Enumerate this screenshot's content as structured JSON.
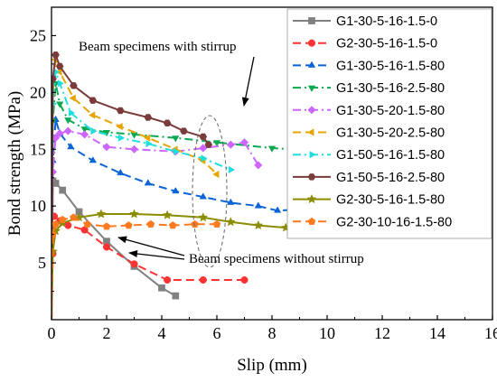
{
  "chart_data": {
    "type": "line",
    "xlabel": "Slip (mm)",
    "ylabel": "Bond strength (MPa)",
    "xlim": [
      0,
      16
    ],
    "ylim": [
      0,
      27.5
    ],
    "xticks": [
      0,
      2,
      4,
      6,
      8,
      10,
      12,
      14,
      16
    ],
    "yticks": [
      5,
      10,
      15,
      20,
      25
    ],
    "grid": false,
    "legend": "top-right",
    "annotations": [
      {
        "id": "with-stirrup",
        "text": "Beam specimens with stirrup"
      },
      {
        "id": "without-stirrup",
        "text": "Beam specimens without stirrup"
      }
    ],
    "series": [
      {
        "name": "G1-30-5-16-1.5-0",
        "color": "#808080",
        "marker": "square",
        "dash": "solid",
        "x": [
          0,
          0.05,
          0.15,
          0.4,
          1.0,
          2.0,
          3.0,
          4.0,
          4.5
        ],
        "y": [
          0,
          12.2,
          12.0,
          11.4,
          9.5,
          6.9,
          4.7,
          2.8,
          2.1
        ]
      },
      {
        "name": "G2-30-5-16-1.5-0",
        "color": "#ff3333",
        "marker": "circle",
        "dash": "dash",
        "x": [
          0,
          0.05,
          0.1,
          0.3,
          0.6,
          1.2,
          2.0,
          3.0,
          4.2,
          5.5,
          7.0
        ],
        "y": [
          0,
          5.8,
          9.1,
          8.7,
          8.3,
          7.9,
          6.4,
          4.9,
          3.5,
          3.5,
          3.5
        ]
      },
      {
        "name": "G1-30-5-16-1.5-80",
        "color": "#0a64d8",
        "marker": "triangle",
        "dash": "dash",
        "x": [
          0,
          0.05,
          0.15,
          0.3,
          0.7,
          1.5,
          2.5,
          3.5,
          4.5,
          5.5,
          6.5,
          7.5,
          8.2,
          9.0,
          9.7,
          10.0
        ],
        "y": [
          0,
          14.0,
          17.6,
          16.4,
          15.2,
          14.0,
          12.9,
          12.0,
          11.3,
          10.8,
          10.3,
          10.0,
          9.6,
          9.7,
          10.2,
          10.8
        ]
      },
      {
        "name": "G1-30-5-16-2.5-80",
        "color": "#0aa84f",
        "marker": "triangle-down",
        "dash": "dashdot",
        "x": [
          0,
          0.05,
          0.15,
          0.3,
          0.6,
          1.2,
          2.0,
          3.0,
          4.5,
          6.0,
          8.0,
          10.0
        ],
        "y": [
          0,
          17.5,
          20.8,
          19.0,
          17.6,
          16.8,
          16.5,
          16.3,
          16.0,
          15.6,
          15.1,
          14.8
        ]
      },
      {
        "name": "G1-30-5-20-1.5-80",
        "color": "#cc66ff",
        "marker": "diamond",
        "dash": "dashdot",
        "x": [
          0,
          0.05,
          0.15,
          0.3,
          0.6,
          1.2,
          2.0,
          3.0,
          4.5,
          5.5,
          6.5,
          7.0,
          7.5
        ],
        "y": [
          0,
          13.0,
          16.0,
          16.4,
          16.6,
          16.3,
          15.2,
          15.0,
          14.8,
          15.1,
          15.4,
          15.6,
          13.6
        ]
      },
      {
        "name": "G1-30-5-20-2.5-80",
        "color": "#e6a500",
        "marker": "triangle-left",
        "dash": "dash",
        "x": [
          0,
          0.05,
          0.15,
          0.3,
          0.8,
          1.5,
          2.5,
          3.5,
          4.5,
          5.5,
          6.0
        ],
        "y": [
          0,
          20.0,
          22.9,
          21.8,
          19.5,
          18.0,
          17.0,
          16.0,
          15.0,
          14.0,
          12.8
        ]
      },
      {
        "name": "G1-50-5-16-1.5-80",
        "color": "#22dddd",
        "marker": "triangle-right",
        "dash": "dashdot",
        "x": [
          0,
          0.05,
          0.15,
          0.3,
          0.7,
          1.5,
          2.5,
          3.5,
          4.5,
          5.5,
          6.5
        ],
        "y": [
          0,
          19.0,
          21.8,
          20.8,
          18.2,
          16.6,
          16.0,
          15.5,
          14.8,
          14.2,
          13.2
        ]
      },
      {
        "name": "G1-50-5-16-2.5-80",
        "color": "#7a3b3b",
        "marker": "hexagon",
        "dash": "solid",
        "x": [
          0,
          0.05,
          0.15,
          0.3,
          0.8,
          1.5,
          2.5,
          3.5,
          4.2,
          4.8,
          5.5,
          5.7
        ],
        "y": [
          0,
          21.2,
          23.3,
          22.3,
          20.6,
          19.3,
          18.4,
          17.8,
          17.3,
          16.6,
          16.1,
          15.4
        ]
      },
      {
        "name": "G2-30-5-16-1.5-80",
        "color": "#8c8c00",
        "marker": "star",
        "dash": "solid",
        "x": [
          0,
          0.05,
          0.15,
          0.4,
          1.0,
          1.8,
          3.0,
          4.2,
          5.5,
          6.5,
          7.5,
          8.5,
          9.5,
          10.0
        ],
        "y": [
          0,
          6.0,
          7.8,
          8.5,
          9.0,
          9.3,
          9.3,
          9.2,
          9.0,
          8.6,
          8.3,
          8.1,
          8.0,
          8.0
        ]
      },
      {
        "name": "G2-30-10-16-1.5-80",
        "color": "#ff7a1f",
        "marker": "pentagon",
        "dash": "dash",
        "x": [
          0,
          0.05,
          0.15,
          0.4,
          0.8,
          1.3,
          2.0,
          2.8,
          3.6,
          4.4,
          5.2,
          6.0
        ],
        "y": [
          0,
          7.5,
          8.4,
          8.8,
          9.0,
          8.4,
          8.2,
          8.3,
          8.4,
          8.3,
          8.4,
          8.4
        ]
      }
    ]
  }
}
